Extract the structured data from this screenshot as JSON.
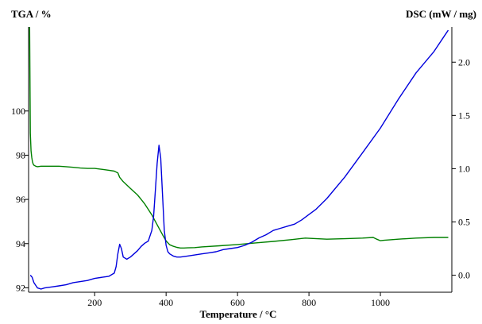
{
  "chart_data": {
    "type": "line",
    "xlabel": "Temperature / °C",
    "ylabel_left": "TGA / %",
    "ylabel_right": "DSC (mW / mg)",
    "xlim": [
      15,
      1200
    ],
    "ylim_left": [
      91.8,
      103.8
    ],
    "ylim_right": [
      -0.16,
      2.33
    ],
    "x_ticks": [
      200,
      400,
      600,
      800,
      1000
    ],
    "y_ticks_left": [
      92,
      94,
      96,
      98,
      100
    ],
    "y_ticks_right": [
      0.0,
      0.5,
      1.0,
      1.5,
      2.0
    ],
    "x_tick_labels": [
      "200",
      "400",
      "600",
      "800",
      "1000"
    ],
    "y_tick_labels_left": [
      "92",
      "94",
      "96",
      "98",
      "100"
    ],
    "y_tick_labels_right": [
      "0.0",
      "0.5",
      "1.0",
      "1.5",
      "2.0"
    ],
    "grid": false,
    "colors": {
      "TGA": "#008000",
      "DSC": "#0000dd",
      "axis": "#000000"
    },
    "series": [
      {
        "axis": "left",
        "x": [
          18,
          20,
          22,
          24,
          26,
          28,
          30,
          35,
          40,
          50,
          60,
          80,
          100,
          120,
          140,
          160,
          180,
          200,
          220,
          240,
          255,
          265,
          270,
          280,
          290,
          300,
          310,
          320,
          330,
          340,
          350,
          360,
          370,
          380,
          390,
          400,
          410,
          420,
          430,
          440,
          450,
          460,
          480,
          500,
          550,
          600,
          650,
          700,
          750,
          790,
          800,
          850,
          900,
          950,
          980,
          990,
          1000,
          1010,
          1050,
          1100,
          1150,
          1190
        ],
        "y": [
          103.8,
          99.0,
          98.2,
          97.9,
          97.7,
          97.6,
          97.55,
          97.5,
          97.48,
          97.5,
          97.5,
          97.5,
          97.5,
          97.48,
          97.45,
          97.42,
          97.4,
          97.4,
          97.36,
          97.32,
          97.28,
          97.2,
          97.0,
          96.8,
          96.65,
          96.5,
          96.35,
          96.2,
          96.0,
          95.8,
          95.55,
          95.3,
          95.0,
          94.7,
          94.4,
          94.12,
          93.95,
          93.88,
          93.83,
          93.8,
          93.8,
          93.81,
          93.82,
          93.85,
          93.9,
          93.96,
          94.03,
          94.1,
          94.18,
          94.25,
          94.24,
          94.2,
          94.22,
          94.25,
          94.28,
          94.2,
          94.13,
          94.15,
          94.2,
          94.25,
          94.28,
          94.28
        ]
      },
      {
        "axis": "right",
        "x": [
          20,
          25,
          30,
          40,
          50,
          60,
          80,
          100,
          120,
          140,
          160,
          180,
          200,
          220,
          240,
          255,
          260,
          265,
          270,
          275,
          280,
          290,
          300,
          310,
          320,
          330,
          340,
          350,
          360,
          365,
          370,
          375,
          380,
          385,
          390,
          395,
          400,
          405,
          410,
          420,
          430,
          440,
          460,
          480,
          500,
          520,
          540,
          560,
          580,
          600,
          620,
          640,
          660,
          680,
          700,
          720,
          740,
          760,
          780,
          800,
          820,
          850,
          900,
          950,
          1000,
          1050,
          1100,
          1150,
          1180,
          1190
        ],
        "y": [
          0.0,
          -0.02,
          -0.07,
          -0.12,
          -0.13,
          -0.12,
          -0.11,
          -0.1,
          -0.09,
          -0.07,
          -0.06,
          -0.05,
          -0.03,
          -0.02,
          -0.01,
          0.02,
          0.08,
          0.2,
          0.29,
          0.25,
          0.17,
          0.15,
          0.17,
          0.2,
          0.23,
          0.27,
          0.3,
          0.32,
          0.42,
          0.55,
          0.8,
          1.05,
          1.22,
          1.1,
          0.75,
          0.42,
          0.28,
          0.22,
          0.2,
          0.18,
          0.17,
          0.17,
          0.18,
          0.19,
          0.2,
          0.21,
          0.22,
          0.24,
          0.25,
          0.26,
          0.28,
          0.31,
          0.35,
          0.38,
          0.42,
          0.44,
          0.46,
          0.48,
          0.52,
          0.57,
          0.62,
          0.72,
          0.92,
          1.15,
          1.38,
          1.65,
          1.9,
          2.1,
          2.25,
          2.3
        ]
      }
    ]
  }
}
